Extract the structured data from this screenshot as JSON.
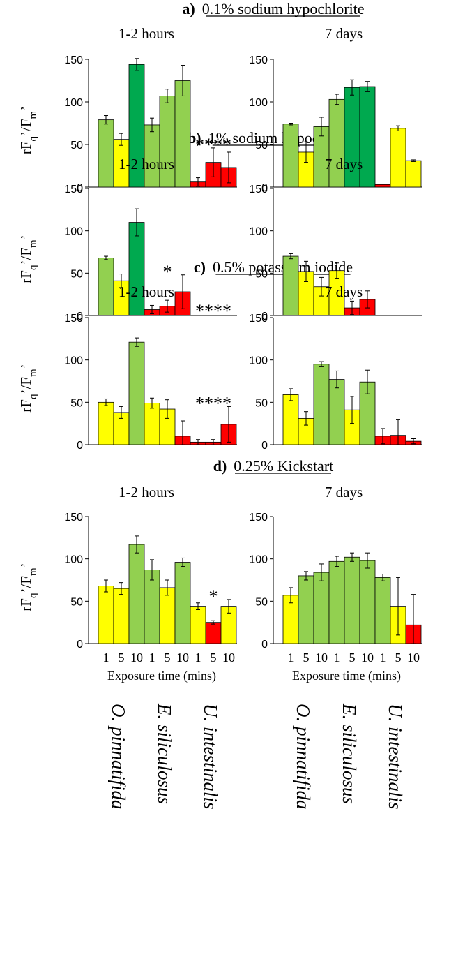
{
  "y_axis_label_base": "rF",
  "y_axis_label_sub1": "q",
  "y_axis_label_mid": "’/F",
  "y_axis_label_sub2": "m",
  "y_axis_label_end": "’",
  "x_axis_label": "Exposure time (mins)",
  "x_tick_labels": [
    "1",
    "5",
    "10"
  ],
  "species": [
    "O. pinnatifida",
    "E. siliculosus",
    "U. intestinalis"
  ],
  "colors": {
    "light_green": "#92d050",
    "dark_green": "#00a94f",
    "yellow": "#ffff00",
    "red": "#ff0000",
    "axis": "#000000",
    "error_bar": "#000000"
  },
  "chart_data": [
    {
      "type": "bar",
      "panel": "a)",
      "treatment": "0.1% sodium hypochlorite",
      "time": "1-2 hours",
      "ylim": [
        0,
        150
      ],
      "yticks": [
        0,
        50,
        100,
        150
      ],
      "groups": [
        {
          "species": "O. pinnatifida",
          "bars": [
            {
              "x": "1",
              "value": 79,
              "error": 5,
              "color": "light_green"
            },
            {
              "x": "5",
              "value": 56,
              "error": 7,
              "color": "yellow"
            },
            {
              "x": "10",
              "value": 144,
              "error": 7,
              "color": "dark_green"
            }
          ]
        },
        {
          "species": "E. siliculosus",
          "bars": [
            {
              "x": "1",
              "value": 73,
              "error": 8,
              "color": "light_green"
            },
            {
              "x": "5",
              "value": 107,
              "error": 8,
              "color": "light_green"
            },
            {
              "x": "10",
              "value": 125,
              "error": 18,
              "color": "light_green"
            }
          ]
        },
        {
          "species": "U. intestinalis",
          "annotation": "****",
          "bars": [
            {
              "x": "1",
              "value": 6,
              "error": 5,
              "color": "red"
            },
            {
              "x": "5",
              "value": 29,
              "error": 17,
              "color": "red"
            },
            {
              "x": "10",
              "value": 23,
              "error": 18,
              "color": "red"
            }
          ]
        }
      ]
    },
    {
      "type": "bar",
      "panel": "a)",
      "treatment": "0.1% sodium hypochlorite",
      "time": "7 days",
      "ylim": [
        0,
        150
      ],
      "yticks": [
        0,
        50,
        100,
        150
      ],
      "groups": [
        {
          "species": "O. pinnatifida",
          "bars": [
            {
              "x": "1",
              "value": 74,
              "error": 1,
              "color": "light_green"
            },
            {
              "x": "5",
              "value": 41,
              "error": 12,
              "color": "yellow"
            },
            {
              "x": "10",
              "value": 71,
              "error": 11,
              "color": "light_green"
            }
          ]
        },
        {
          "species": "E. siliculosus",
          "bars": [
            {
              "x": "1",
              "value": 103,
              "error": 6,
              "color": "light_green"
            },
            {
              "x": "5",
              "value": 117,
              "error": 9,
              "color": "dark_green"
            },
            {
              "x": "10",
              "value": 118,
              "error": 6,
              "color": "dark_green"
            }
          ]
        },
        {
          "species": "U. intestinalis",
          "bars": [
            {
              "x": "1",
              "value": 3,
              "error": 0,
              "color": "red"
            },
            {
              "x": "5",
              "value": 69,
              "error": 3,
              "color": "yellow"
            },
            {
              "x": "10",
              "value": 31,
              "error": 1,
              "color": "yellow"
            }
          ]
        }
      ]
    },
    {
      "type": "bar",
      "panel": "b)",
      "treatment": "1% sodium hypochlorite",
      "time": "1-2 hours",
      "ylim": [
        0,
        150
      ],
      "yticks": [
        0,
        50,
        100,
        150
      ],
      "groups": [
        {
          "species": "O. pinnatifida",
          "bars": [
            {
              "x": "1",
              "value": 68,
              "error": 2,
              "color": "light_green"
            },
            {
              "x": "5",
              "value": 41,
              "error": 8,
              "color": "yellow"
            },
            {
              "x": "10",
              "value": 110,
              "error": 16,
              "color": "dark_green"
            }
          ]
        },
        {
          "species": "E. siliculosus",
          "annotation": "*",
          "bars": [
            {
              "x": "1",
              "value": 7,
              "error": 5,
              "color": "red"
            },
            {
              "x": "5",
              "value": 11,
              "error": 7,
              "color": "red"
            },
            {
              "x": "10",
              "value": 28,
              "error": 20,
              "color": "red"
            }
          ]
        },
        {
          "species": "U. intestinalis",
          "annotation": "****",
          "bars": []
        }
      ]
    },
    {
      "type": "bar",
      "panel": "b)",
      "treatment": "1% sodium hypochlorite",
      "time": "7 days",
      "ylim": [
        0,
        150
      ],
      "yticks": [
        0,
        50,
        100,
        150
      ],
      "groups": [
        {
          "species": "O. pinnatifida",
          "bars": [
            {
              "x": "1",
              "value": 70,
              "error": 3,
              "color": "light_green"
            },
            {
              "x": "5",
              "value": 52,
              "error": 12,
              "color": "yellow"
            },
            {
              "x": "10",
              "value": 34,
              "error": 11,
              "color": "yellow"
            }
          ]
        },
        {
          "species": "E. siliculosus",
          "bars": [
            {
              "x": "1",
              "value": 53,
              "error": 9,
              "color": "yellow"
            },
            {
              "x": "5",
              "value": 9,
              "error": 8,
              "color": "red"
            },
            {
              "x": "10",
              "value": 19,
              "error": 10,
              "color": "red"
            }
          ]
        },
        {
          "species": "U. intestinalis",
          "bars": []
        }
      ]
    },
    {
      "type": "bar",
      "panel": "c)",
      "treatment": "0.5% potassium iodide",
      "time": "1-2 hours",
      "ylim": [
        0,
        150
      ],
      "yticks": [
        0,
        50,
        100,
        150
      ],
      "groups": [
        {
          "species": "O. pinnatifida",
          "bars": [
            {
              "x": "1",
              "value": 50,
              "error": 4,
              "color": "yellow"
            },
            {
              "x": "5",
              "value": 38,
              "error": 7,
              "color": "yellow"
            },
            {
              "x": "10",
              "value": 121,
              "error": 5,
              "color": "light_green"
            }
          ]
        },
        {
          "species": "E. siliculosus",
          "bars": [
            {
              "x": "1",
              "value": 49,
              "error": 6,
              "color": "yellow"
            },
            {
              "x": "5",
              "value": 42,
              "error": 11,
              "color": "yellow"
            },
            {
              "x": "10",
              "value": 10,
              "error": 18,
              "color": "red"
            }
          ]
        },
        {
          "species": "U. intestinalis",
          "annotation": "****",
          "bars": [
            {
              "x": "1",
              "value": 3,
              "error": 3,
              "color": "red"
            },
            {
              "x": "5",
              "value": 3,
              "error": 3,
              "color": "red"
            },
            {
              "x": "10",
              "value": 24,
              "error": 21,
              "color": "red"
            }
          ]
        }
      ]
    },
    {
      "type": "bar",
      "panel": "c)",
      "treatment": "0.5% potassium iodide",
      "time": "7 days",
      "ylim": [
        0,
        150
      ],
      "yticks": [
        0,
        50,
        100,
        150
      ],
      "groups": [
        {
          "species": "O. pinnatifida",
          "bars": [
            {
              "x": "1",
              "value": 59,
              "error": 7,
              "color": "yellow"
            },
            {
              "x": "5",
              "value": 31,
              "error": 8,
              "color": "yellow"
            },
            {
              "x": "10",
              "value": 95,
              "error": 3,
              "color": "light_green"
            }
          ]
        },
        {
          "species": "E. siliculosus",
          "bars": [
            {
              "x": "1",
              "value": 77,
              "error": 10,
              "color": "light_green"
            },
            {
              "x": "5",
              "value": 41,
              "error": 16,
              "color": "yellow"
            },
            {
              "x": "10",
              "value": 74,
              "error": 14,
              "color": "light_green"
            }
          ]
        },
        {
          "species": "U. intestinalis",
          "bars": [
            {
              "x": "1",
              "value": 10,
              "error": 9,
              "color": "red"
            },
            {
              "x": "5",
              "value": 11,
              "error": 19,
              "color": "red"
            },
            {
              "x": "10",
              "value": 4,
              "error": 3,
              "color": "red"
            }
          ]
        }
      ]
    },
    {
      "type": "bar",
      "panel": "d)",
      "treatment": "0.25% Kickstart",
      "time": "1-2 hours",
      "ylim": [
        0,
        150
      ],
      "yticks": [
        0,
        50,
        100,
        150
      ],
      "groups": [
        {
          "species": "O. pinnatifida",
          "bars": [
            {
              "x": "1",
              "value": 68,
              "error": 7,
              "color": "yellow"
            },
            {
              "x": "5",
              "value": 65,
              "error": 7,
              "color": "yellow"
            },
            {
              "x": "10",
              "value": 117,
              "error": 10,
              "color": "light_green"
            }
          ]
        },
        {
          "species": "E. siliculosus",
          "bars": [
            {
              "x": "1",
              "value": 87,
              "error": 12,
              "color": "light_green"
            },
            {
              "x": "5",
              "value": 66,
              "error": 9,
              "color": "yellow"
            },
            {
              "x": "10",
              "value": 96,
              "error": 5,
              "color": "light_green"
            }
          ]
        },
        {
          "species": "U. intestinalis",
          "annotation": "*",
          "bars": [
            {
              "x": "1",
              "value": 44,
              "error": 4,
              "color": "yellow"
            },
            {
              "x": "5",
              "value": 25,
              "error": 2,
              "color": "red"
            },
            {
              "x": "10",
              "value": 44,
              "error": 8,
              "color": "yellow"
            }
          ]
        }
      ]
    },
    {
      "type": "bar",
      "panel": "d)",
      "treatment": "0.25% Kickstart",
      "time": "7 days",
      "ylim": [
        0,
        150
      ],
      "yticks": [
        0,
        50,
        100,
        150
      ],
      "groups": [
        {
          "species": "O. pinnatifida",
          "bars": [
            {
              "x": "1",
              "value": 57,
              "error": 9,
              "color": "yellow"
            },
            {
              "x": "5",
              "value": 80,
              "error": 5,
              "color": "light_green"
            },
            {
              "x": "10",
              "value": 84,
              "error": 10,
              "color": "light_green"
            }
          ]
        },
        {
          "species": "E. siliculosus",
          "bars": [
            {
              "x": "1",
              "value": 97,
              "error": 6,
              "color": "light_green"
            },
            {
              "x": "5",
              "value": 102,
              "error": 5,
              "color": "light_green"
            },
            {
              "x": "10",
              "value": 98,
              "error": 9,
              "color": "light_green"
            }
          ]
        },
        {
          "species": "U. intestinalis",
          "bars": [
            {
              "x": "1",
              "value": 78,
              "error": 4,
              "color": "light_green"
            },
            {
              "x": "5",
              "value": 44,
              "error": 34,
              "color": "yellow"
            },
            {
              "x": "10",
              "value": 22,
              "error": 36,
              "color": "red"
            }
          ]
        }
      ]
    }
  ]
}
